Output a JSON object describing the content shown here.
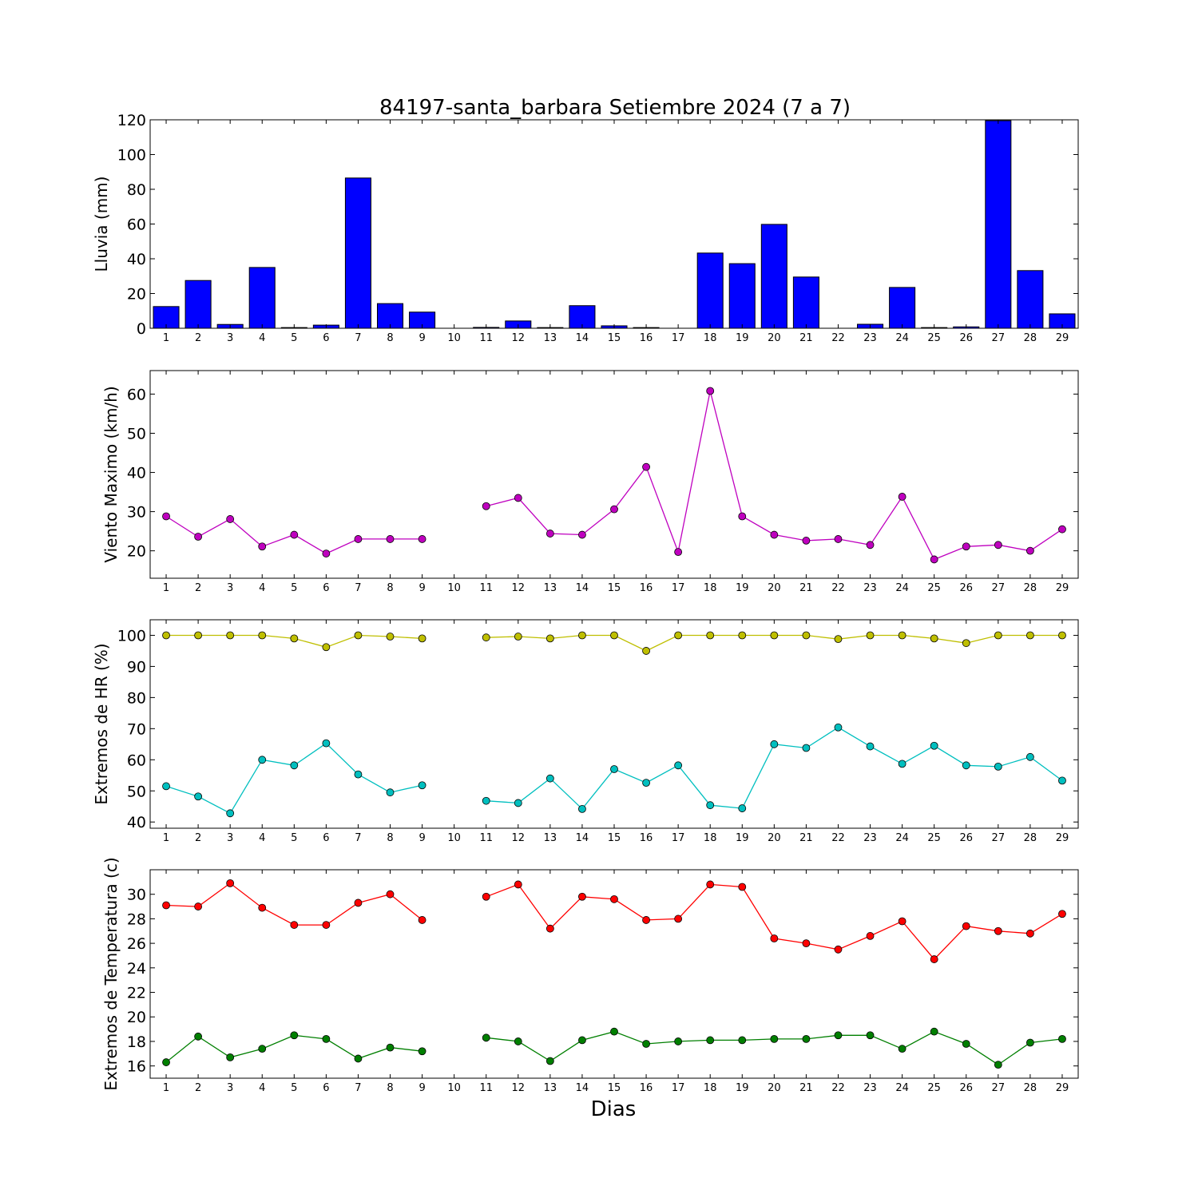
{
  "title": "84197-santa_barbara Setiembre 2024  (7 a 7)",
  "xlabel": "Dias",
  "colors": {
    "rain": "#0000ff",
    "wind": "#bf00bf",
    "hr_max": "#bfbf00",
    "hr_min": "#00bfbf",
    "t_max": "#ff0000",
    "t_min": "#007f00"
  },
  "chart_data": [
    {
      "type": "bar",
      "ylabel": "Lluvia (mm)",
      "ylim": [
        0,
        120
      ],
      "yticks": [
        0,
        20,
        40,
        60,
        80,
        100,
        120
      ],
      "categories": [
        "1",
        "2",
        "3",
        "4",
        "5",
        "6",
        "7",
        "8",
        "9",
        "10",
        "11",
        "12",
        "13",
        "14",
        "15",
        "16",
        "17",
        "18",
        "19",
        "20",
        "21",
        "22",
        "23",
        "24",
        "25",
        "26",
        "27",
        "28",
        "29"
      ],
      "series": [
        {
          "color_key": "rain",
          "values": [
            12.5,
            27.5,
            2.2,
            35,
            0.4,
            1.8,
            86.5,
            14.2,
            9.3,
            0,
            0.5,
            4.2,
            0.4,
            13,
            1.4,
            0.4,
            0,
            43.3,
            37.2,
            59.8,
            29.5,
            0,
            2.3,
            23.5,
            0.4,
            0.8,
            119.5,
            33.2,
            8.3
          ]
        }
      ]
    },
    {
      "type": "line",
      "ylabel": "Viento Maximo (km/h)",
      "ylim": [
        13,
        66
      ],
      "yticks": [
        20,
        30,
        40,
        50,
        60
      ],
      "categories": [
        "1",
        "2",
        "3",
        "4",
        "5",
        "6",
        "7",
        "8",
        "9",
        "10",
        "11",
        "12",
        "13",
        "14",
        "15",
        "16",
        "17",
        "18",
        "19",
        "20",
        "21",
        "22",
        "23",
        "24",
        "25",
        "26",
        "27",
        "28",
        "29"
      ],
      "series": [
        {
          "color_key": "wind",
          "values": [
            28.8,
            23.6,
            28.1,
            21.1,
            24.1,
            19.3,
            23,
            23,
            23,
            null,
            31.4,
            33.5,
            24.4,
            24.1,
            30.6,
            41.4,
            19.7,
            60.8,
            28.8,
            24.1,
            22.6,
            23,
            21.5,
            33.8,
            17.8,
            21.1,
            21.5,
            20,
            25.5
          ]
        }
      ]
    },
    {
      "type": "line",
      "ylabel": "Extremos de HR (%)",
      "ylim": [
        38,
        105
      ],
      "yticks": [
        40,
        50,
        60,
        70,
        80,
        90,
        100
      ],
      "categories": [
        "1",
        "2",
        "3",
        "4",
        "5",
        "6",
        "7",
        "8",
        "9",
        "10",
        "11",
        "12",
        "13",
        "14",
        "15",
        "16",
        "17",
        "18",
        "19",
        "20",
        "21",
        "22",
        "23",
        "24",
        "25",
        "26",
        "27",
        "28",
        "29"
      ],
      "series": [
        {
          "color_key": "hr_max",
          "values": [
            100,
            100,
            100,
            100,
            99,
            96.2,
            100,
            99.6,
            99,
            null,
            99.3,
            99.6,
            99,
            100,
            100,
            95,
            100,
            100,
            100,
            100,
            100,
            98.8,
            100,
            100,
            99,
            97.5,
            100,
            100,
            100
          ]
        },
        {
          "color_key": "hr_min",
          "values": [
            51.5,
            48.2,
            42.8,
            60,
            58.2,
            65.3,
            55.3,
            49.5,
            51.8,
            null,
            46.8,
            46.1,
            54,
            44.2,
            57,
            52.6,
            58.2,
            45.4,
            44.4,
            65,
            63.8,
            70.4,
            64.3,
            58.7,
            64.5,
            58.2,
            57.8,
            60.9,
            53.3
          ]
        }
      ]
    },
    {
      "type": "line",
      "ylabel": "Extremos de Temperatura (c)",
      "ylim": [
        15,
        32
      ],
      "yticks": [
        16,
        18,
        20,
        22,
        24,
        26,
        28,
        30
      ],
      "categories": [
        "1",
        "2",
        "3",
        "4",
        "5",
        "6",
        "7",
        "8",
        "9",
        "10",
        "11",
        "12",
        "13",
        "14",
        "15",
        "16",
        "17",
        "18",
        "19",
        "20",
        "21",
        "22",
        "23",
        "24",
        "25",
        "26",
        "27",
        "28",
        "29"
      ],
      "series": [
        {
          "color_key": "t_max",
          "values": [
            29.1,
            29,
            30.9,
            28.9,
            27.5,
            27.5,
            29.3,
            30,
            27.9,
            null,
            29.8,
            30.8,
            27.2,
            29.8,
            29.6,
            27.9,
            28,
            30.8,
            30.6,
            26.4,
            26,
            25.5,
            26.6,
            27.8,
            24.7,
            27.4,
            27,
            26.8,
            28.4
          ]
        },
        {
          "color_key": "t_min",
          "values": [
            16.3,
            18.4,
            16.7,
            17.4,
            18.5,
            18.2,
            16.6,
            17.5,
            17.2,
            null,
            18.3,
            18,
            16.4,
            18.1,
            18.8,
            17.8,
            18,
            18.1,
            18.1,
            18.2,
            18.2,
            18.5,
            18.5,
            17.4,
            18.8,
            17.8,
            16.1,
            17.9,
            18.2
          ]
        }
      ]
    }
  ]
}
